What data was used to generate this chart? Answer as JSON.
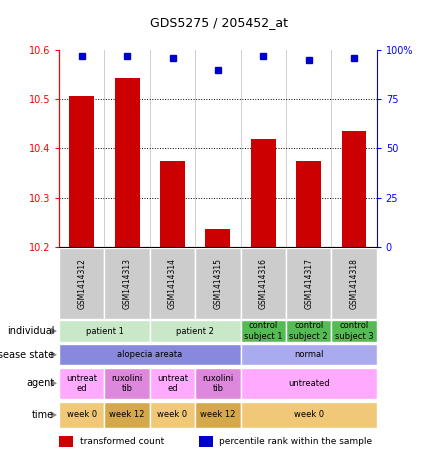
{
  "title": "GDS5275 / 205452_at",
  "samples": [
    "GSM1414312",
    "GSM1414313",
    "GSM1414314",
    "GSM1414315",
    "GSM1414316",
    "GSM1414317",
    "GSM1414318"
  ],
  "bar_values": [
    10.506,
    10.543,
    10.375,
    10.236,
    10.42,
    10.375,
    10.435
  ],
  "dot_values": [
    97,
    97,
    96,
    90,
    97,
    95,
    96
  ],
  "ylim_left": [
    10.2,
    10.6
  ],
  "ylim_right": [
    0,
    100
  ],
  "yticks_left": [
    10.2,
    10.3,
    10.4,
    10.5,
    10.6
  ],
  "yticks_right": [
    0,
    25,
    50,
    75,
    100
  ],
  "bar_color": "#cc0000",
  "dot_color": "#0000cc",
  "individual_spans": [
    [
      0,
      2,
      "patient 1",
      "#c8e8c8"
    ],
    [
      2,
      4,
      "patient 2",
      "#c8e8c8"
    ],
    [
      4,
      5,
      "control\nsubject 1",
      "#55bb55"
    ],
    [
      5,
      6,
      "control\nsubject 2",
      "#55bb55"
    ],
    [
      6,
      7,
      "control\nsubject 3",
      "#55bb55"
    ]
  ],
  "disease_spans": [
    [
      0,
      4,
      "alopecia areata",
      "#8888dd"
    ],
    [
      4,
      7,
      "normal",
      "#aaaaee"
    ]
  ],
  "agent_spans": [
    [
      0,
      1,
      "untreat\ned",
      "#ffaaff"
    ],
    [
      1,
      2,
      "ruxolini\ntib",
      "#dd88dd"
    ],
    [
      2,
      3,
      "untreat\ned",
      "#ffaaff"
    ],
    [
      3,
      4,
      "ruxolini\ntib",
      "#dd88dd"
    ],
    [
      4,
      7,
      "untreated",
      "#ffaaff"
    ]
  ],
  "time_spans": [
    [
      0,
      1,
      "week 0",
      "#f0c878"
    ],
    [
      1,
      2,
      "week 12",
      "#d4a84b"
    ],
    [
      2,
      3,
      "week 0",
      "#f0c878"
    ],
    [
      3,
      4,
      "week 12",
      "#d4a84b"
    ],
    [
      4,
      7,
      "week 0",
      "#f0c878"
    ]
  ],
  "row_labels": [
    "individual",
    "disease state",
    "agent",
    "time"
  ],
  "legend_bar_label": "transformed count",
  "legend_dot_label": "percentile rank within the sample",
  "sample_box_color": "#cccccc"
}
